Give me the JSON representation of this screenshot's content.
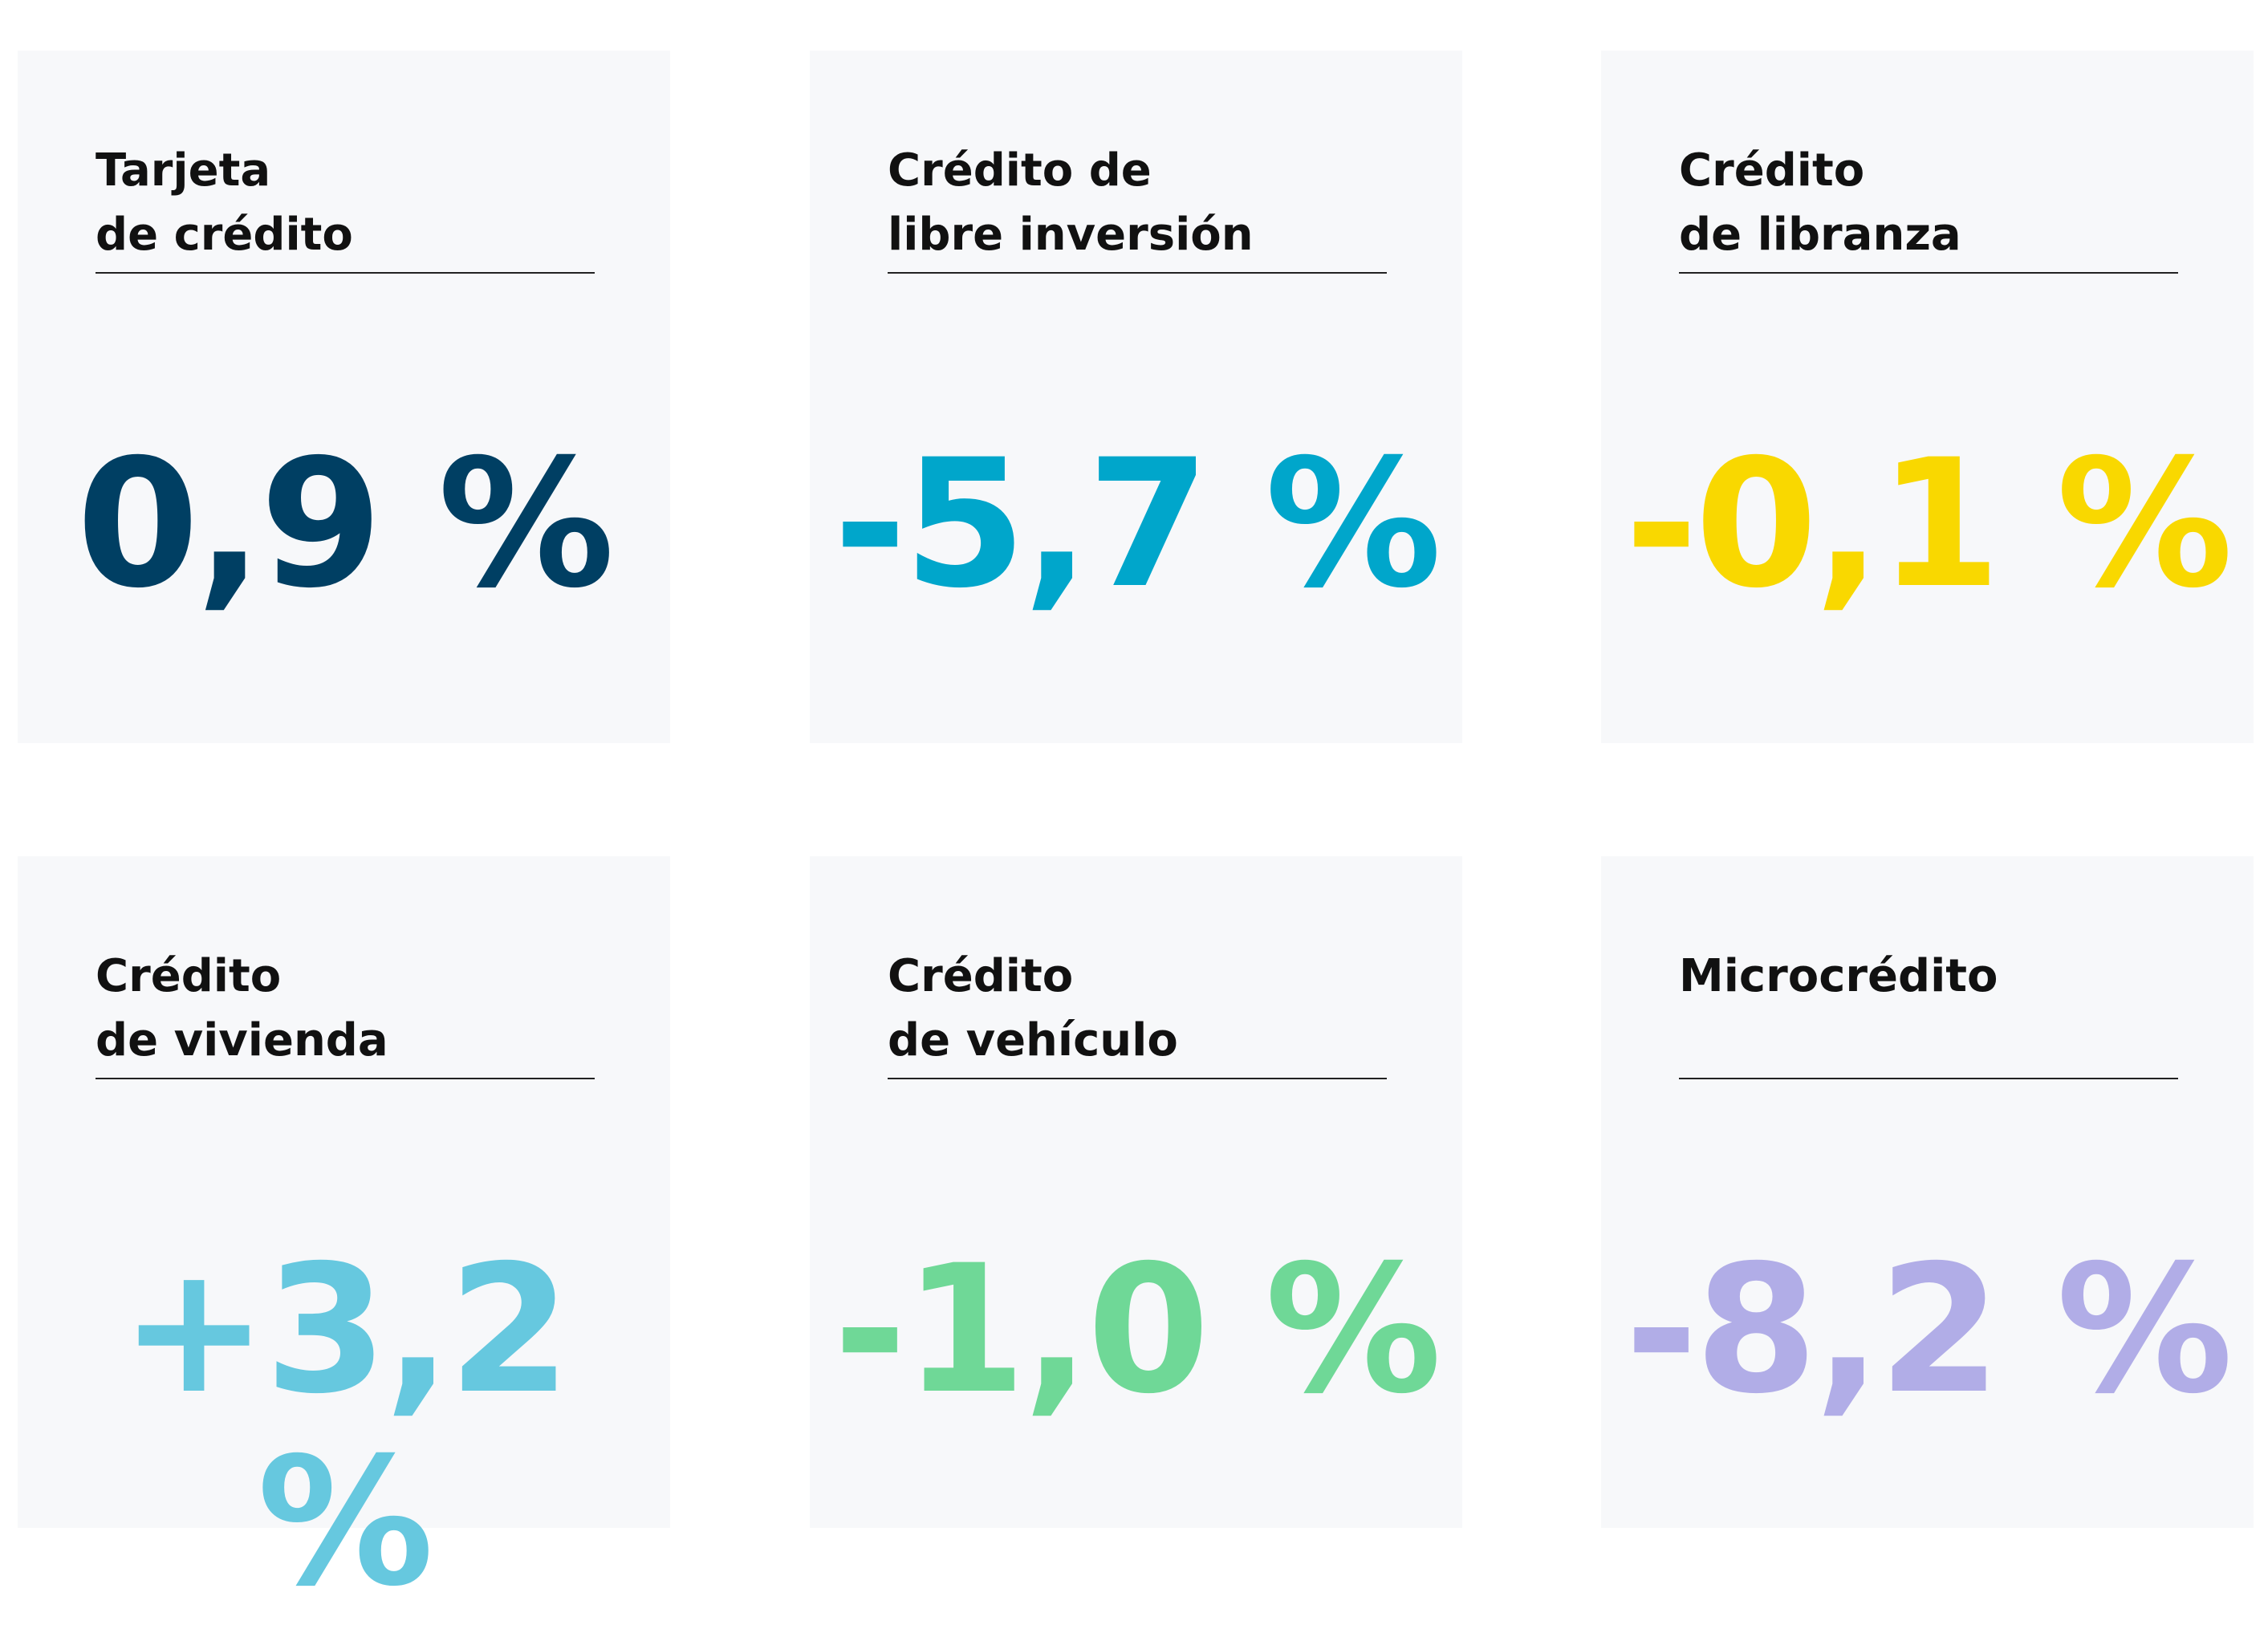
{
  "cards": [
    {
      "title_lines": [
        "Tarjeta",
        "de crédito"
      ],
      "value": "0,9 %",
      "color": "#003f63"
    },
    {
      "title_lines": [
        "Crédito de",
        "libre inversión"
      ],
      "value": "-5,7 %",
      "color": "#00a6cb"
    },
    {
      "title_lines": [
        "Crédito",
        "de libranza"
      ],
      "value": "-0,1 %",
      "color": "#f9d800"
    },
    {
      "title_lines": [
        "Crédito",
        "de vivienda"
      ],
      "value": "+3,2 %",
      "color": "#66c8df"
    },
    {
      "title_lines": [
        "Crédito",
        "de vehículo"
      ],
      "value": "-1,0 %",
      "color": "#6fd897"
    },
    {
      "title_lines": [
        "Microcrédito"
      ],
      "value": "-8,2 %",
      "color": "#b1ade7"
    }
  ]
}
